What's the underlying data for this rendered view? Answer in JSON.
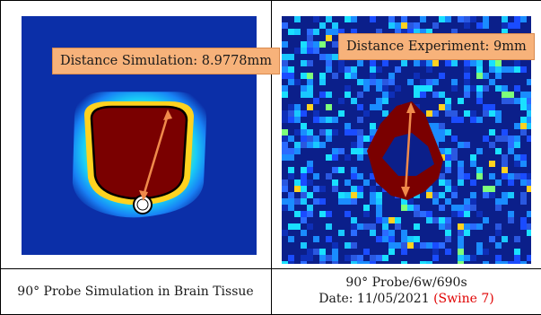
{
  "panels": {
    "left": {
      "label": "Distance Simulation: 8.9778mm",
      "caption": "90° Probe Simulation in Brain Tissue",
      "background_color": "#0b2fa8",
      "lesion_color": "#7a0000",
      "arrow_color": "#f08a4b"
    },
    "right": {
      "label": "Distance Experiment: 9mm",
      "caption_line1": "90° Probe/6w/690s",
      "caption_line2_prefix": "Date: 11/05/2021",
      "caption_line2_highlight": "(Swine 7)",
      "background_color": "#0b1f8a",
      "lesion_color": "#7a0000",
      "arrow_color": "#f08a4b"
    }
  }
}
